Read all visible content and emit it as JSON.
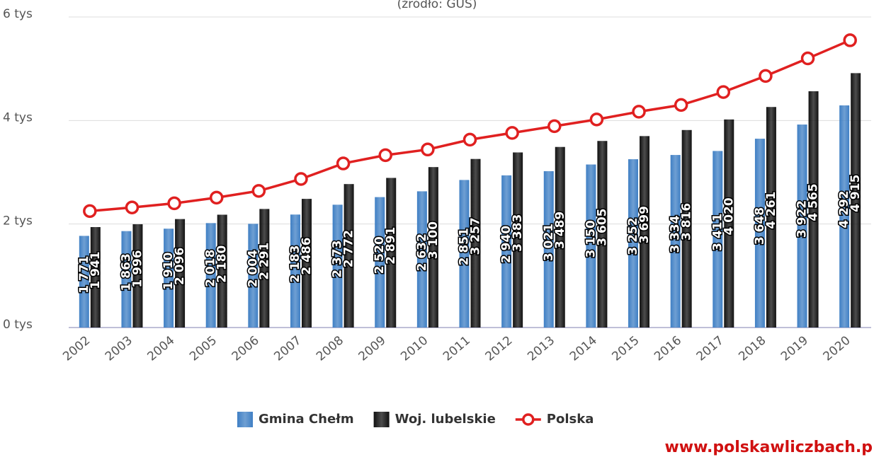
{
  "chart_data": {
    "type": "bar",
    "subtitle": "(źródło: GUS)",
    "source": "www.polskawliczbach.p",
    "categories": [
      "2002",
      "2003",
      "2004",
      "2005",
      "2006",
      "2007",
      "2008",
      "2009",
      "2010",
      "2011",
      "2012",
      "2013",
      "2014",
      "2015",
      "2016",
      "2017",
      "2018",
      "2019",
      "2020"
    ],
    "series": [
      {
        "name": "Gmina Chełm",
        "color": "#3f7fc4",
        "type": "bar",
        "values": [
          1771,
          1863,
          1910,
          2018,
          2004,
          2183,
          2373,
          2520,
          2632,
          2851,
          2940,
          3021,
          3150,
          3252,
          3334,
          3411,
          3648,
          3922,
          4292
        ],
        "value_labels": [
          "1 771",
          "1 863",
          "1 910",
          "2 018",
          "2 004",
          "2 183",
          "2 373",
          "2 520",
          "2 632",
          "2 851",
          "2 940",
          "3 021",
          "3 150",
          "3 252",
          "3 334",
          "3 411",
          "3 648",
          "3 922",
          "4 292"
        ]
      },
      {
        "name": "Woj. lubelskie",
        "color": "#111111",
        "type": "bar",
        "values": [
          1941,
          1996,
          2096,
          2180,
          2291,
          2486,
          2772,
          2891,
          3100,
          3257,
          3383,
          3489,
          3605,
          3699,
          3816,
          4020,
          4261,
          4565,
          4915
        ],
        "value_labels": [
          "1 941",
          "1 996",
          "2 096",
          "2 180",
          "2 291",
          "2 486",
          "2 772",
          "2 891",
          "3 100",
          "3 257",
          "3 383",
          "3 489",
          "3 605",
          "3 699",
          "3 816",
          "4 020",
          "4 261",
          "4 565",
          "4 915"
        ]
      },
      {
        "name": "Polska",
        "color": "#e02020",
        "type": "line",
        "values": [
          2250,
          2320,
          2400,
          2510,
          2640,
          2870,
          3170,
          3330,
          3440,
          3630,
          3760,
          3890,
          4020,
          4170,
          4300,
          4550,
          4860,
          5200,
          5550
        ]
      }
    ],
    "ylim": [
      0,
      6000
    ],
    "yticks": [
      {
        "value": 0,
        "label": "0 tys"
      },
      {
        "value": 2000,
        "label": "2 tys"
      },
      {
        "value": 4000,
        "label": "4 tys"
      },
      {
        "value": 6000,
        "label": "6 tys"
      }
    ],
    "grid": true
  }
}
